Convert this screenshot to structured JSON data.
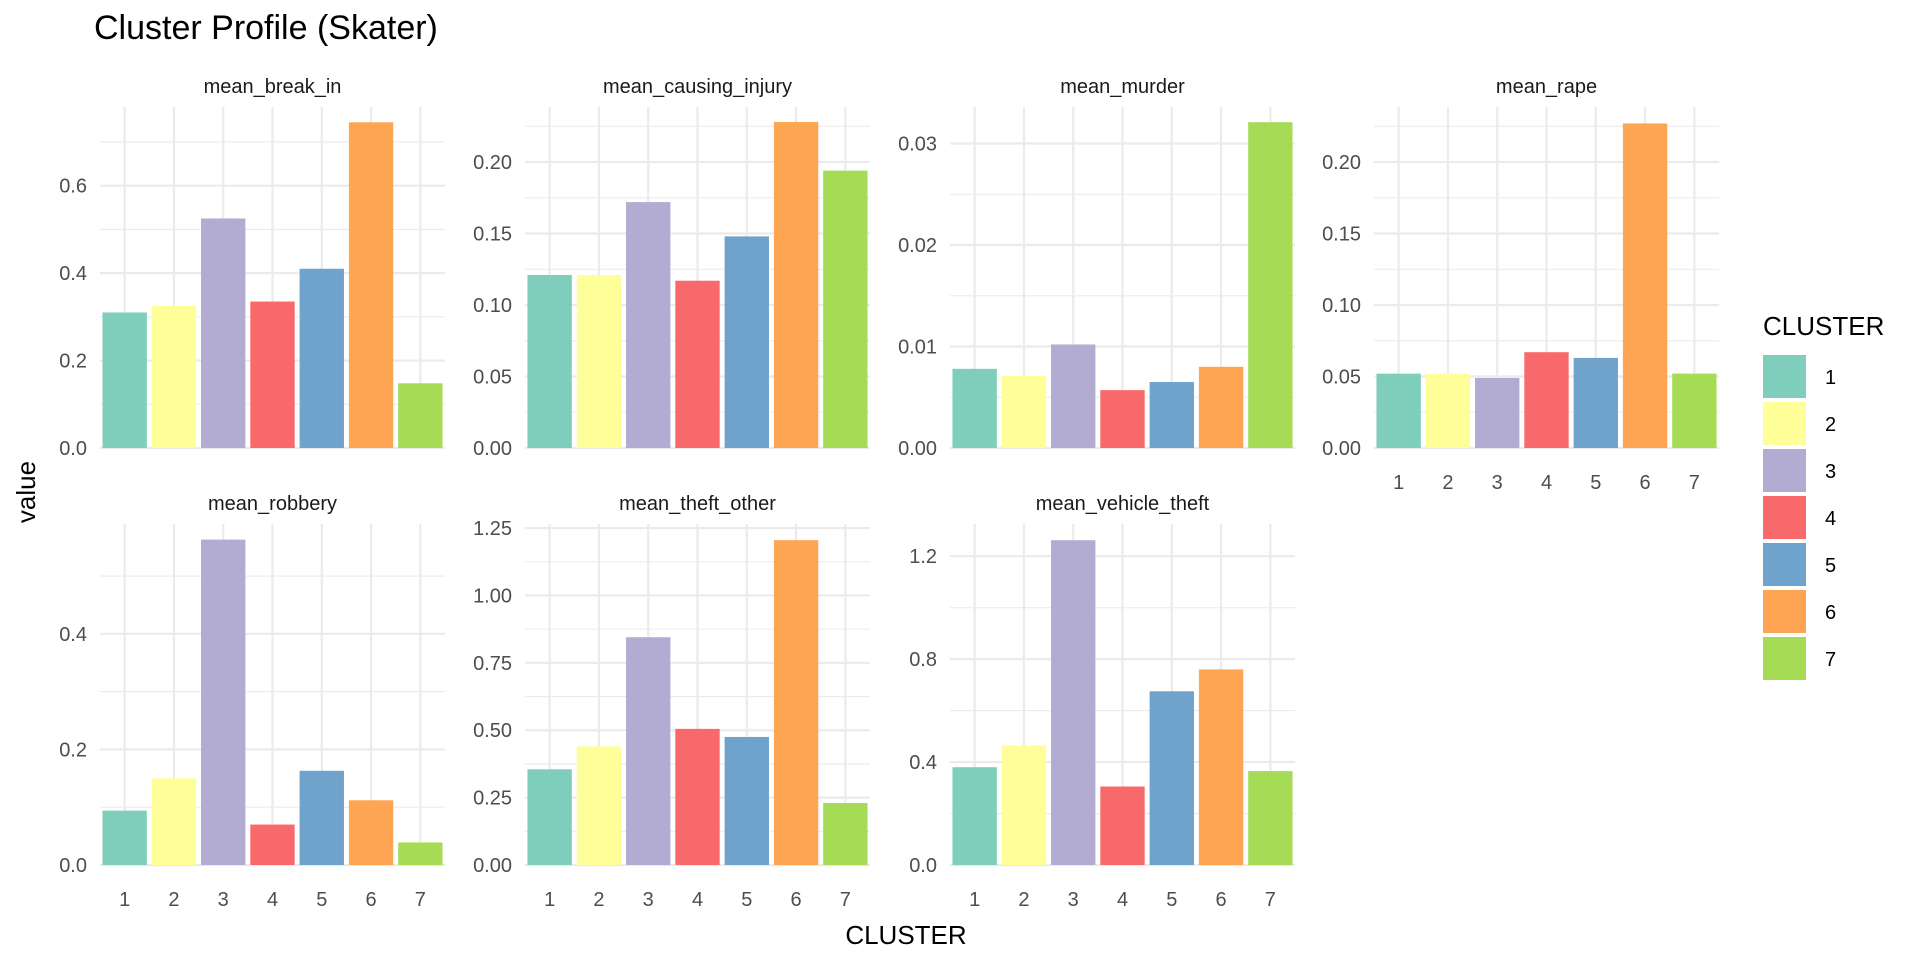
{
  "chart_data": {
    "type": "bar",
    "title": "Cluster Profile (Skater)",
    "xlabel": "CLUSTER",
    "ylabel": "value",
    "categories": [
      "1",
      "2",
      "3",
      "4",
      "5",
      "6",
      "7"
    ],
    "colors": [
      "#7fcdbb",
      "#ffff99",
      "#b2abd2",
      "#f8696b",
      "#6fa3cb",
      "#fda552",
      "#a6db55"
    ],
    "legend": {
      "title": "CLUSTER",
      "entries": [
        "1",
        "2",
        "3",
        "4",
        "5",
        "6",
        "7"
      ],
      "position": "right"
    },
    "grid": true,
    "facet_scales": "free_y",
    "panels": [
      {
        "name": "mean_break_in",
        "values": [
          0.31,
          0.325,
          0.525,
          0.335,
          0.41,
          0.745,
          0.148
        ],
        "ylim": [
          0,
          0.78
        ],
        "ticks": [
          0.0,
          0.2,
          0.4,
          0.6
        ],
        "tick_labels": [
          "0.0",
          "0.2",
          "0.4",
          "0.6"
        ]
      },
      {
        "name": "mean_causing_injury",
        "values": [
          0.121,
          0.121,
          0.172,
          0.117,
          0.148,
          0.228,
          0.194
        ],
        "ylim": [
          0,
          0.2385
        ],
        "ticks": [
          0.0,
          0.05,
          0.1,
          0.15,
          0.2
        ],
        "tick_labels": [
          "0.00",
          "0.05",
          "0.10",
          "0.15",
          "0.20"
        ]
      },
      {
        "name": "mean_murder",
        "values": [
          0.0078,
          0.0071,
          0.0102,
          0.0057,
          0.0065,
          0.008,
          0.0321
        ],
        "ylim": [
          0,
          0.0336
        ],
        "ticks": [
          0.0,
          0.01,
          0.02,
          0.03
        ],
        "tick_labels": [
          "0.00",
          "0.01",
          "0.02",
          "0.03"
        ]
      },
      {
        "name": "mean_rape",
        "values": [
          0.052,
          0.052,
          0.049,
          0.067,
          0.063,
          0.227,
          0.052
        ],
        "ylim": [
          0,
          0.2385
        ],
        "ticks": [
          0.0,
          0.05,
          0.1,
          0.15,
          0.2
        ],
        "tick_labels": [
          "0.00",
          "0.05",
          "0.10",
          "0.15",
          "0.20"
        ]
      },
      {
        "name": "mean_robbery",
        "values": [
          0.094,
          0.15,
          0.563,
          0.07,
          0.163,
          0.112,
          0.039
        ],
        "ylim": [
          0,
          0.59
        ],
        "ticks": [
          0.0,
          0.2,
          0.4
        ],
        "tick_labels": [
          "0.0",
          "0.2",
          "0.4"
        ]
      },
      {
        "name": "mean_theft_other",
        "values": [
          0.355,
          0.44,
          0.845,
          0.505,
          0.475,
          1.205,
          0.23
        ],
        "ylim": [
          0,
          1.265
        ],
        "ticks": [
          0.0,
          0.25,
          0.5,
          0.75,
          1.0,
          1.25
        ],
        "tick_labels": [
          "0.00",
          "0.25",
          "0.50",
          "0.75",
          "1.00",
          "1.25"
        ]
      },
      {
        "name": "mean_vehicle_theft",
        "values": [
          0.38,
          0.465,
          1.262,
          0.305,
          0.675,
          0.76,
          0.365
        ],
        "ylim": [
          0,
          1.325
        ],
        "ticks": [
          0.0,
          0.4,
          0.8,
          1.2
        ],
        "tick_labels": [
          "0.0",
          "0.4",
          "0.8",
          "1.2"
        ]
      }
    ]
  }
}
